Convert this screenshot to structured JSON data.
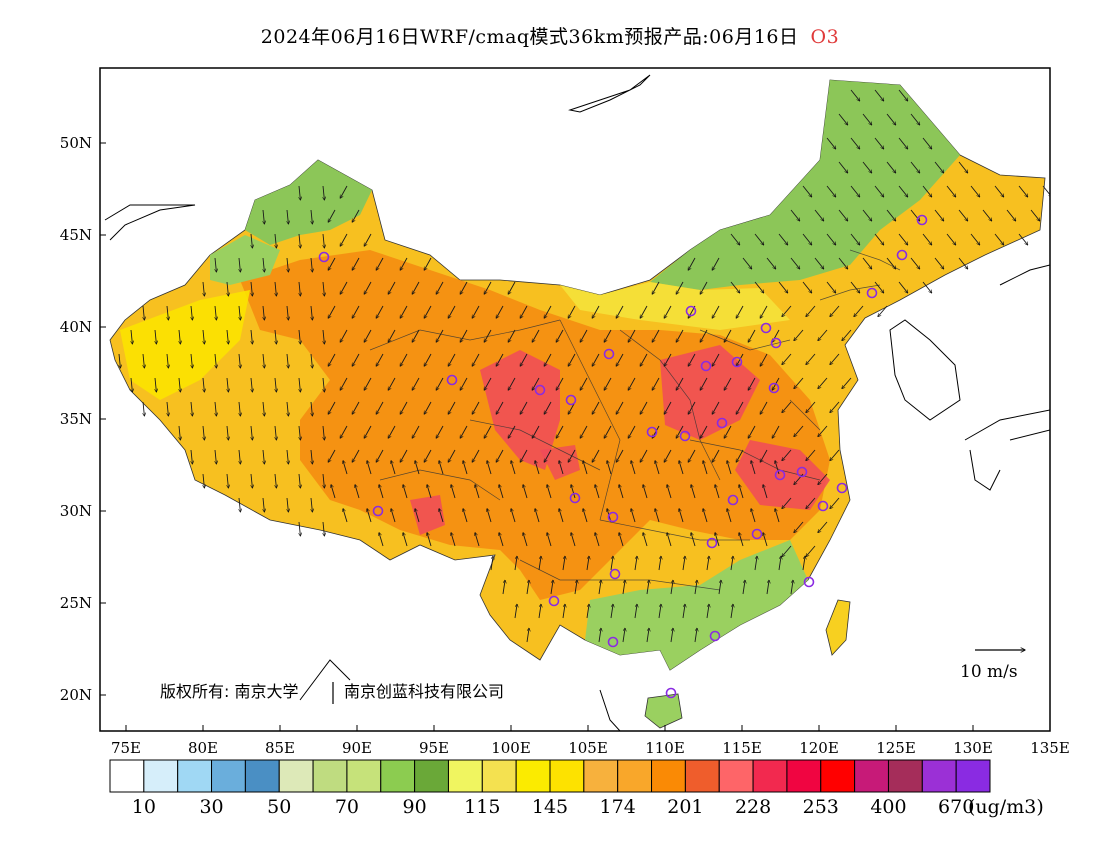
{
  "title": {
    "text": "2024年06月16日WRF/cmaq模式36km预报产品:06月16日",
    "species": "O3"
  },
  "map": {
    "lon_range": [
      73,
      135
    ],
    "lat_range": [
      18,
      54
    ],
    "lon_ticks": [
      "75E",
      "80E",
      "85E",
      "90E",
      "95E",
      "100E",
      "105E",
      "110E",
      "115E",
      "120E",
      "125E",
      "130E",
      "135E"
    ],
    "lat_ticks": [
      "20N",
      "25N",
      "30N",
      "35N",
      "40N",
      "45N",
      "50N"
    ],
    "copyright": "版权所有: 南京大学",
    "copyright2": "南京创蓝科技有限公司",
    "wind_scale_label": "10 m/s",
    "station_marker_color": "#8a2be2"
  },
  "legend": {
    "unit": "(ug/m3)",
    "colors": [
      "#ffffff",
      "#d6eefa",
      "#a0d8f4",
      "#6aaedc",
      "#4a8fc4",
      "#dde9b8",
      "#bfdc80",
      "#c6e27a",
      "#8ccc50",
      "#6aa838",
      "#f0f560",
      "#f4e150",
      "#fbeb00",
      "#fde200",
      "#f7b13d",
      "#f9a72a",
      "#fa8a05",
      "#ef5d2c",
      "#fe6568",
      "#f2294f",
      "#f00541",
      "#ff0000",
      "#c71a78",
      "#a52d5a",
      "#9b30d6",
      "#8a2be2"
    ],
    "labels": [
      "10",
      "30",
      "50",
      "70",
      "90",
      "115",
      "145",
      "174",
      "201",
      "228",
      "253",
      "400",
      "670"
    ]
  }
}
